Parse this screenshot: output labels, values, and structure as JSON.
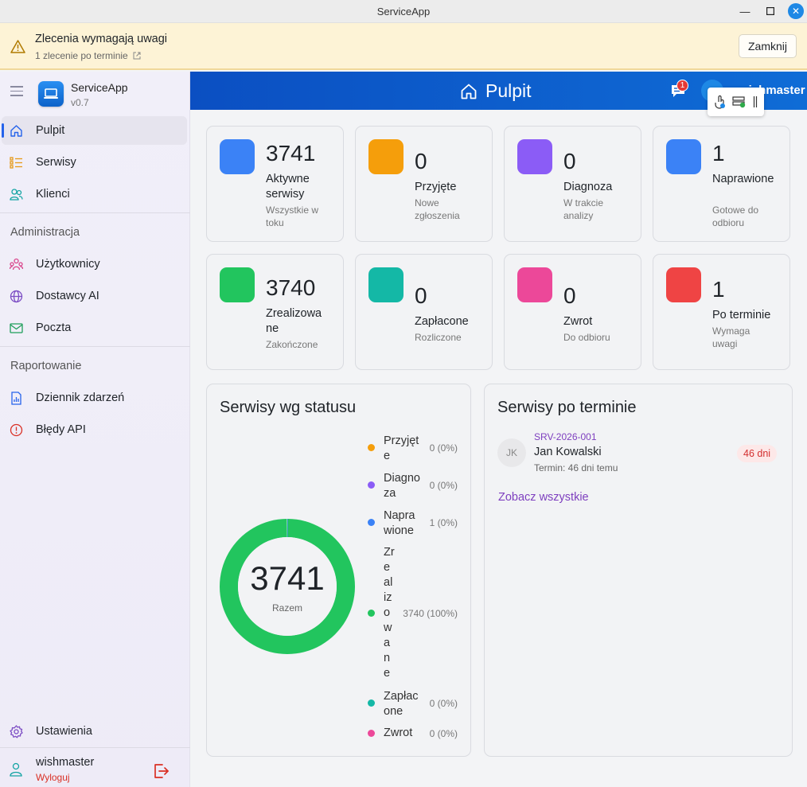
{
  "window": {
    "title": "ServiceApp"
  },
  "banner": {
    "title": "Zlecenia wymagają uwagi",
    "subtitle": "1 zlecenie po terminie",
    "close_label": "Zamknij"
  },
  "sidebar": {
    "app_name": "ServiceApp",
    "version": "v0.7",
    "items": [
      {
        "label": "Pulpit",
        "icon": "home-icon"
      },
      {
        "label": "Serwisy",
        "icon": "list-icon"
      },
      {
        "label": "Klienci",
        "icon": "users-icon"
      }
    ],
    "admin_title": "Administracja",
    "admin_items": [
      {
        "label": "Użytkownicy",
        "icon": "user-group-icon"
      },
      {
        "label": "Dostawcy AI",
        "icon": "globe-icon"
      },
      {
        "label": "Poczta",
        "icon": "mail-icon"
      }
    ],
    "report_title": "Raportowanie",
    "report_items": [
      {
        "label": "Dziennik zdarzeń",
        "icon": "report-icon"
      },
      {
        "label": "Błędy API",
        "icon": "alert-circle-icon"
      }
    ],
    "settings_label": "Ustawienia",
    "user_name": "wishmaster",
    "logout_label": "Wyloguj"
  },
  "header": {
    "title": "Pulpit",
    "notifications_count": "1",
    "user": "wishmaster"
  },
  "stats": [
    {
      "value": "3741",
      "label": "Aktywne serwisy",
      "sub": "Wszystkie w toku",
      "color": "#3b82f6"
    },
    {
      "value": "0",
      "label": "Przyjęte",
      "sub": "Nowe zgłoszenia",
      "color": "#f59e0b"
    },
    {
      "value": "0",
      "label": "Diagnoza",
      "sub": "W trakcie analizy",
      "color": "#8b5cf6"
    },
    {
      "value": "1",
      "label": "Naprawione",
      "sub": "Gotowe do odbioru",
      "color": "#3b82f6"
    },
    {
      "value": "3740",
      "label": "Zrealizowane",
      "sub": "Zakończone",
      "color": "#22c55e"
    },
    {
      "value": "0",
      "label": "Zapłacone",
      "sub": "Rozliczone",
      "color": "#14b8a6"
    },
    {
      "value": "0",
      "label": "Zwrot",
      "sub": "Do odbioru",
      "color": "#ec4899"
    },
    {
      "value": "1",
      "label": "Po terminie",
      "sub": "Wymaga uwagi",
      "color": "#ef4444"
    }
  ],
  "status_panel": {
    "title": "Serwisy wg statusu",
    "total": "3741",
    "total_label": "Razem",
    "legend": [
      {
        "name": "Przyjęte",
        "value": "0 (0%)",
        "color": "#f59e0b"
      },
      {
        "name": "Diagnoza",
        "value": "0 (0%)",
        "color": "#8b5cf6"
      },
      {
        "name": "Naprawione",
        "value": "1 (0%)",
        "color": "#3b82f6"
      },
      {
        "name": "Zrealizowane",
        "value": "3740 (100%)",
        "color": "#22c55e"
      },
      {
        "name": "Zapłacone",
        "value": "0 (0%)",
        "color": "#14b8a6"
      },
      {
        "name": "Zwrot",
        "value": "0 (0%)",
        "color": "#ec4899"
      }
    ]
  },
  "chart_data": {
    "type": "pie",
    "title": "Serwisy wg statusu",
    "categories": [
      "Przyjęte",
      "Diagnoza",
      "Naprawione",
      "Zrealizowane",
      "Zapłacone",
      "Zwrot"
    ],
    "values": [
      0,
      0,
      1,
      3740,
      0,
      0
    ],
    "colors": [
      "#f59e0b",
      "#8b5cf6",
      "#3b82f6",
      "#22c55e",
      "#14b8a6",
      "#ec4899"
    ],
    "donut": true,
    "legend": "right"
  },
  "overdue_panel": {
    "title": "Serwisy po terminie",
    "items": [
      {
        "initials": "JK",
        "code": "SRV-2026-001",
        "name": "Jan Kowalski",
        "term": "Termin: 46 dni temu",
        "badge": "46 dni"
      }
    ],
    "see_all": "Zobacz wszystkie"
  }
}
